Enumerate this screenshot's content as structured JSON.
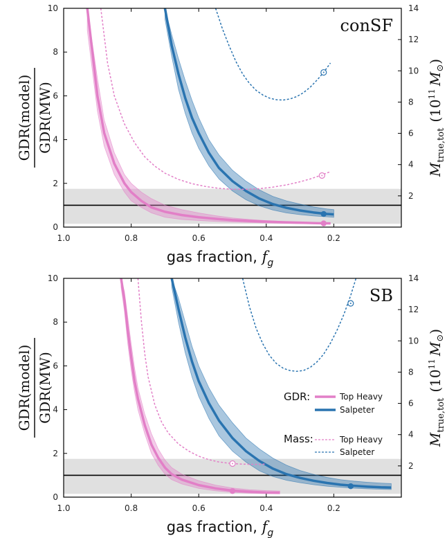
{
  "colors": {
    "pink": "#e27fc7",
    "blue": "#2a74b0",
    "band": "#e0e0e0",
    "black": "#000000"
  },
  "axis_labels": {
    "x_main": "gas fraction, ",
    "x_sym": "f",
    "x_sub": "g",
    "y_left_num": "GDR(model)",
    "y_left_den": "GDR(MW)",
    "y_right_sym": "M",
    "y_right_sub": "true,tot",
    "y_right_unit_open": "(10",
    "y_right_exp": "11",
    "y_right_unit_M": "M",
    "y_right_sun": "⊙",
    "y_right_close": ")"
  },
  "legend": {
    "gdr_title": "GDR:",
    "mass_title": "Mass:",
    "entries": [
      "Top Heavy",
      "Salpeter"
    ]
  },
  "chart_data": [
    {
      "type": "line",
      "panel_label": "conSF",
      "xlabel": "gas fraction, f_g",
      "ylabel_left": "GDR(model) / GDR(MW)",
      "ylabel_right": "M_true,tot (10^11 M_sun)",
      "xlim": [
        1.0,
        0.0
      ],
      "ylim": [
        0,
        10
      ],
      "ylim_right": [
        0,
        14
      ],
      "xticks": [
        "1.0",
        "0.8",
        "0.6",
        "0.4",
        "0.2"
      ],
      "yticks": [
        "0",
        "2",
        "4",
        "6",
        "8",
        "10"
      ],
      "yticks_right": [
        "2",
        "4",
        "6",
        "8",
        "10",
        "12",
        "14"
      ],
      "reference_line": 1.0,
      "band": [
        0.15,
        1.75
      ],
      "series": [
        {
          "name": "Top Heavy",
          "quantity": "GDR",
          "style": "solid",
          "x": [
            0.93,
            0.9,
            0.88,
            0.85,
            0.82,
            0.8,
            0.77,
            0.74,
            0.7,
            0.65,
            0.6,
            0.55,
            0.5,
            0.45,
            0.4,
            0.35,
            0.3,
            0.25,
            0.21
          ],
          "y": [
            10.0,
            6.0,
            4.3,
            2.9,
            2.0,
            1.6,
            1.2,
            0.9,
            0.7,
            0.55,
            0.45,
            0.38,
            0.32,
            0.28,
            0.25,
            0.22,
            0.2,
            0.18,
            0.17
          ],
          "band_low": [
            9.0,
            5.3,
            3.7,
            2.4,
            1.6,
            1.2,
            0.9,
            0.65,
            0.45,
            0.35,
            0.3,
            0.26,
            0.23,
            0.21,
            0.19,
            0.17,
            0.16,
            0.15,
            0.14
          ],
          "band_high": [
            10.0,
            6.8,
            4.9,
            3.4,
            2.4,
            2.0,
            1.6,
            1.3,
            1.0,
            0.8,
            0.65,
            0.52,
            0.42,
            0.35,
            0.3,
            0.26,
            0.23,
            0.21,
            0.2
          ],
          "marker": {
            "x": 0.23,
            "y": 0.17
          }
        },
        {
          "name": "Salpeter",
          "quantity": "GDR",
          "style": "solid",
          "x": [
            0.7,
            0.68,
            0.66,
            0.64,
            0.62,
            0.6,
            0.57,
            0.54,
            0.5,
            0.46,
            0.42,
            0.38,
            0.34,
            0.3,
            0.26,
            0.22,
            0.2
          ],
          "y": [
            10.0,
            8.3,
            7.0,
            5.9,
            5.0,
            4.3,
            3.4,
            2.7,
            2.1,
            1.65,
            1.3,
            1.05,
            0.88,
            0.76,
            0.67,
            0.6,
            0.58
          ],
          "band_low": [
            9.5,
            7.8,
            6.3,
            5.2,
            4.3,
            3.6,
            2.8,
            2.2,
            1.65,
            1.25,
            0.97,
            0.78,
            0.65,
            0.57,
            0.51,
            0.47,
            0.45
          ],
          "band_high": [
            10.0,
            8.8,
            7.7,
            6.7,
            5.8,
            5.0,
            4.0,
            3.3,
            2.6,
            2.1,
            1.7,
            1.4,
            1.2,
            1.05,
            0.92,
            0.83,
            0.8
          ],
          "marker": {
            "x": 0.23,
            "y": 0.6
          }
        },
        {
          "name": "Top Heavy",
          "quantity": "Mass",
          "style": "dashed",
          "axis": "right",
          "x": [
            0.89,
            0.87,
            0.85,
            0.82,
            0.79,
            0.76,
            0.73,
            0.7,
            0.66,
            0.62,
            0.58,
            0.54,
            0.5,
            0.46,
            0.42,
            0.38,
            0.34,
            0.3,
            0.27,
            0.24,
            0.21
          ],
          "y": [
            14.0,
            10.5,
            8.4,
            6.6,
            5.4,
            4.5,
            3.9,
            3.45,
            3.05,
            2.78,
            2.6,
            2.48,
            2.42,
            2.42,
            2.46,
            2.56,
            2.7,
            2.9,
            3.08,
            3.3,
            3.55
          ],
          "marker": {
            "x": 0.235,
            "y": 3.3
          }
        },
        {
          "name": "Salpeter",
          "quantity": "Mass",
          "style": "dashed",
          "axis": "right",
          "x": [
            0.55,
            0.53,
            0.51,
            0.49,
            0.47,
            0.45,
            0.43,
            0.41,
            0.39,
            0.37,
            0.35,
            0.33,
            0.31,
            0.29,
            0.27,
            0.25,
            0.23,
            0.21
          ],
          "y": [
            14.0,
            12.7,
            11.6,
            10.6,
            9.8,
            9.2,
            8.75,
            8.45,
            8.25,
            8.15,
            8.13,
            8.2,
            8.35,
            8.6,
            8.95,
            9.4,
            9.9,
            10.5
          ],
          "marker": {
            "x": 0.23,
            "y": 9.9
          }
        }
      ]
    },
    {
      "type": "line",
      "panel_label": "SB",
      "xlabel": "gas fraction, f_g",
      "ylabel_left": "GDR(model) / GDR(MW)",
      "ylabel_right": "M_true,tot (10^11 M_sun)",
      "xlim": [
        1.0,
        0.0
      ],
      "ylim": [
        0,
        10
      ],
      "ylim_right": [
        0,
        14
      ],
      "xticks": [
        "1.0",
        "0.8",
        "0.6",
        "0.4",
        "0.2"
      ],
      "yticks": [
        "0",
        "2",
        "4",
        "6",
        "8",
        "10"
      ],
      "yticks_right": [
        "2",
        "4",
        "6",
        "8",
        "10",
        "12",
        "14"
      ],
      "reference_line": 1.0,
      "band": [
        0.15,
        1.75
      ],
      "series": [
        {
          "name": "Top Heavy",
          "quantity": "GDR",
          "style": "solid",
          "x": [
            0.83,
            0.82,
            0.81,
            0.8,
            0.79,
            0.78,
            0.76,
            0.74,
            0.72,
            0.7,
            0.68,
            0.65,
            0.6,
            0.55,
            0.5,
            0.45,
            0.4,
            0.36
          ],
          "y": [
            10.0,
            9.0,
            7.6,
            6.4,
            5.3,
            4.5,
            3.3,
            2.4,
            1.8,
            1.35,
            1.05,
            0.8,
            0.55,
            0.4,
            0.3,
            0.25,
            0.21,
            0.2
          ],
          "band_low": [
            9.6,
            8.5,
            7.0,
            5.8,
            4.8,
            4.0,
            2.9,
            2.0,
            1.45,
            1.05,
            0.8,
            0.6,
            0.4,
            0.29,
            0.22,
            0.18,
            0.16,
            0.15
          ],
          "band_high": [
            10.0,
            9.4,
            8.2,
            7.0,
            5.9,
            5.0,
            3.8,
            2.9,
            2.2,
            1.7,
            1.35,
            1.05,
            0.75,
            0.55,
            0.42,
            0.34,
            0.3,
            0.28
          ],
          "marker": {
            "x": 0.5,
            "y": 0.28
          }
        },
        {
          "name": "Salpeter",
          "quantity": "GDR",
          "style": "solid",
          "x": [
            0.68,
            0.66,
            0.64,
            0.62,
            0.6,
            0.57,
            0.54,
            0.5,
            0.46,
            0.42,
            0.38,
            0.34,
            0.3,
            0.26,
            0.22,
            0.18,
            0.14,
            0.1,
            0.06,
            0.03
          ],
          "y": [
            10.0,
            8.6,
            7.3,
            6.2,
            5.3,
            4.3,
            3.5,
            2.7,
            2.1,
            1.65,
            1.3,
            1.05,
            0.88,
            0.75,
            0.65,
            0.57,
            0.52,
            0.48,
            0.45,
            0.44
          ],
          "band_low": [
            9.6,
            8.0,
            6.6,
            5.5,
            4.6,
            3.6,
            2.8,
            2.1,
            1.6,
            1.2,
            0.94,
            0.77,
            0.66,
            0.57,
            0.5,
            0.45,
            0.41,
            0.38,
            0.36,
            0.35
          ],
          "band_high": [
            10.0,
            9.1,
            8.0,
            6.9,
            6.0,
            5.0,
            4.2,
            3.4,
            2.7,
            2.2,
            1.78,
            1.46,
            1.22,
            1.04,
            0.9,
            0.8,
            0.73,
            0.68,
            0.64,
            0.62
          ],
          "marker": {
            "x": 0.15,
            "y": 0.5
          }
        },
        {
          "name": "Top Heavy",
          "quantity": "Mass",
          "style": "dashed",
          "axis": "right",
          "x": [
            0.78,
            0.77,
            0.76,
            0.75,
            0.73,
            0.71,
            0.69,
            0.66,
            0.63,
            0.6,
            0.57,
            0.54,
            0.51,
            0.48,
            0.45,
            0.42,
            0.4
          ],
          "y": [
            14.0,
            11.3,
            9.2,
            7.7,
            5.9,
            4.8,
            4.1,
            3.4,
            2.95,
            2.62,
            2.4,
            2.25,
            2.17,
            2.12,
            2.1,
            2.1,
            2.12
          ],
          "marker": {
            "x": 0.5,
            "y": 2.15
          }
        },
        {
          "name": "Salpeter",
          "quantity": "Mass",
          "style": "dashed",
          "axis": "right",
          "x": [
            0.47,
            0.45,
            0.43,
            0.41,
            0.39,
            0.37,
            0.35,
            0.33,
            0.31,
            0.29,
            0.27,
            0.25,
            0.23,
            0.21,
            0.19,
            0.17,
            0.15,
            0.13,
            0.11
          ],
          "y": [
            14.0,
            12.2,
            10.8,
            9.8,
            9.05,
            8.55,
            8.25,
            8.1,
            8.05,
            8.1,
            8.3,
            8.65,
            9.15,
            9.85,
            10.7,
            11.7,
            12.9,
            14.3,
            15.8
          ],
          "marker": {
            "x": 0.15,
            "y": 12.4
          }
        }
      ]
    }
  ]
}
